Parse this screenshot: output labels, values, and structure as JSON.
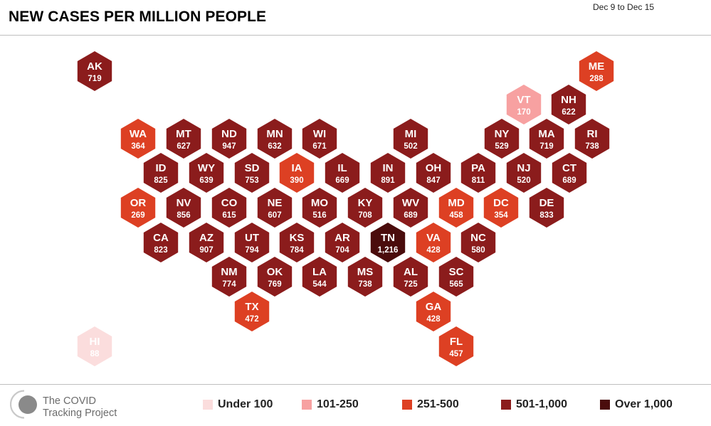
{
  "header": {
    "title": "NEW CASES PER MILLION PEOPLE",
    "date_range": "Dec 9 to Dec 15"
  },
  "brand": {
    "name": "The COVID Tracking Project",
    "logo_icon": "covid-tracking-project-logo"
  },
  "colors": {
    "bin_under_100": "#fbdddd",
    "bin_101_250": "#f7a1a1",
    "bin_251_500": "#dd4023",
    "bin_501_1000": "#8b1c1c",
    "bin_over_1000": "#4a0c0c"
  },
  "legend": [
    {
      "label": "Under 100",
      "color": "#fbdddd"
    },
    {
      "label": "101-250",
      "color": "#f7a1a1"
    },
    {
      "label": "251-500",
      "color": "#dd4023"
    },
    {
      "label": "501-1,000",
      "color": "#8b1c1c"
    },
    {
      "label": "Over 1,000",
      "color": "#4a0c0c"
    }
  ],
  "chart_data": {
    "type": "hex tile map",
    "title": "NEW CASES PER MILLION PEOPLE",
    "period": "Dec 9 to Dec 15",
    "bins": [
      "Under 100",
      "101-250",
      "251-500",
      "501-1,000",
      "Over 1,000"
    ],
    "states": [
      {
        "abbr": "AK",
        "label": "719",
        "value": 719
      },
      {
        "abbr": "ME",
        "label": "288",
        "value": 288
      },
      {
        "abbr": "VT",
        "label": "170",
        "value": 170
      },
      {
        "abbr": "NH",
        "label": "622",
        "value": 622
      },
      {
        "abbr": "WA",
        "label": "364",
        "value": 364
      },
      {
        "abbr": "MT",
        "label": "627",
        "value": 627
      },
      {
        "abbr": "ND",
        "label": "947",
        "value": 947
      },
      {
        "abbr": "MN",
        "label": "632",
        "value": 632
      },
      {
        "abbr": "WI",
        "label": "671",
        "value": 671
      },
      {
        "abbr": "MI",
        "label": "502",
        "value": 502
      },
      {
        "abbr": "NY",
        "label": "529",
        "value": 529
      },
      {
        "abbr": "MA",
        "label": "719",
        "value": 719
      },
      {
        "abbr": "RI",
        "label": "738",
        "value": 738
      },
      {
        "abbr": "ID",
        "label": "825",
        "value": 825
      },
      {
        "abbr": "WY",
        "label": "639",
        "value": 639
      },
      {
        "abbr": "SD",
        "label": "753",
        "value": 753
      },
      {
        "abbr": "IA",
        "label": "390",
        "value": 390
      },
      {
        "abbr": "IL",
        "label": "669",
        "value": 669
      },
      {
        "abbr": "IN",
        "label": "891",
        "value": 891
      },
      {
        "abbr": "OH",
        "label": "847",
        "value": 847
      },
      {
        "abbr": "PA",
        "label": "811",
        "value": 811
      },
      {
        "abbr": "NJ",
        "label": "520",
        "value": 520
      },
      {
        "abbr": "CT",
        "label": "689",
        "value": 689
      },
      {
        "abbr": "OR",
        "label": "269",
        "value": 269
      },
      {
        "abbr": "NV",
        "label": "856",
        "value": 856
      },
      {
        "abbr": "CO",
        "label": "615",
        "value": 615
      },
      {
        "abbr": "NE",
        "label": "607",
        "value": 607
      },
      {
        "abbr": "MO",
        "label": "516",
        "value": 516
      },
      {
        "abbr": "KY",
        "label": "708",
        "value": 708
      },
      {
        "abbr": "WV",
        "label": "689",
        "value": 689
      },
      {
        "abbr": "MD",
        "label": "458",
        "value": 458
      },
      {
        "abbr": "DC",
        "label": "354",
        "value": 354
      },
      {
        "abbr": "DE",
        "label": "833",
        "value": 833
      },
      {
        "abbr": "CA",
        "label": "823",
        "value": 823
      },
      {
        "abbr": "AZ",
        "label": "907",
        "value": 907
      },
      {
        "abbr": "UT",
        "label": "794",
        "value": 794
      },
      {
        "abbr": "KS",
        "label": "784",
        "value": 784
      },
      {
        "abbr": "AR",
        "label": "704",
        "value": 704
      },
      {
        "abbr": "TN",
        "label": "1,216",
        "value": 1216
      },
      {
        "abbr": "VA",
        "label": "428",
        "value": 428
      },
      {
        "abbr": "NC",
        "label": "580",
        "value": 580
      },
      {
        "abbr": "NM",
        "label": "774",
        "value": 774
      },
      {
        "abbr": "OK",
        "label": "769",
        "value": 769
      },
      {
        "abbr": "LA",
        "label": "544",
        "value": 544
      },
      {
        "abbr": "MS",
        "label": "738",
        "value": 738
      },
      {
        "abbr": "AL",
        "label": "725",
        "value": 725
      },
      {
        "abbr": "SC",
        "label": "565",
        "value": 565
      },
      {
        "abbr": "TX",
        "label": "472",
        "value": 472
      },
      {
        "abbr": "GA",
        "label": "428",
        "value": 428
      },
      {
        "abbr": "HI",
        "label": "88",
        "value": 88
      },
      {
        "abbr": "FL",
        "label": "457",
        "value": 457
      }
    ]
  }
}
